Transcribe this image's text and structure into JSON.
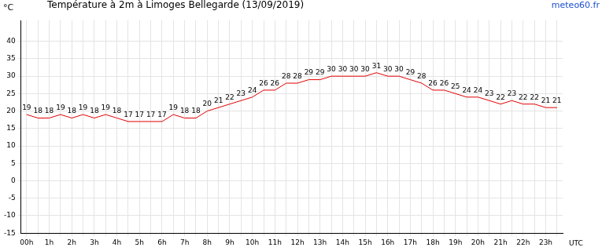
{
  "chart_data": {
    "type": "line",
    "title": "Température à 2m à Limoges Bellegarde (13/09/2019)",
    "xlabel": "UTC",
    "ylabel": "°C",
    "annotations": [
      "meteo60.fr"
    ],
    "categories": [
      "00h",
      null,
      "1h",
      null,
      "2h",
      null,
      "3h",
      null,
      "4h",
      null,
      "5h",
      null,
      "6h",
      null,
      "7h",
      null,
      "8h",
      null,
      "9h",
      null,
      "10h",
      null,
      "11h",
      null,
      "12h",
      null,
      "13h",
      null,
      "14h",
      null,
      "15h",
      null,
      "16h",
      null,
      "17h",
      null,
      "18h",
      null,
      "19h",
      null,
      "20h",
      null,
      "21h",
      null,
      "22h",
      null,
      "23h",
      null
    ],
    "values": [
      19,
      18,
      18,
      19,
      18,
      19,
      18,
      19,
      18,
      17,
      17,
      17,
      17,
      19,
      18,
      18,
      20,
      21,
      22,
      23,
      24,
      26,
      26,
      28,
      28,
      29,
      29,
      30,
      30,
      30,
      30,
      31,
      30,
      30,
      29,
      28,
      26,
      26,
      25,
      24,
      24,
      23,
      22,
      23,
      22,
      22,
      21,
      21
    ],
    "color": "#e00000",
    "ylim": [
      -15,
      46
    ],
    "yticks": [
      -15,
      -10,
      -5,
      0,
      5,
      10,
      15,
      20,
      25,
      30,
      35,
      40
    ],
    "grid": true,
    "data_labels": true
  }
}
